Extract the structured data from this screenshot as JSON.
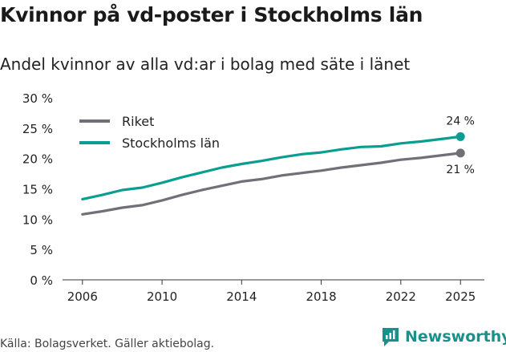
{
  "header": {
    "title": "Kvinnor på vd-poster i Stockholms län",
    "subtitle": "Andel kvinnor av alla vd:ar i bolag med säte i länet"
  },
  "footer": {
    "source": "Källa: Bolagsverket. Gäller aktiebolag.",
    "brand": "Newsworthy"
  },
  "colors": {
    "riket": "#707077",
    "stockholm": "#0a9e93",
    "axis": "#333333",
    "brand": "#1b8f8a"
  },
  "chart_data": {
    "type": "line",
    "title": "Kvinnor på vd-poster i Stockholms län",
    "subtitle": "Andel kvinnor av alla vd:ar i bolag med säte i länet",
    "x": [
      2006,
      2007,
      2008,
      2009,
      2010,
      2011,
      2012,
      2013,
      2014,
      2015,
      2016,
      2017,
      2018,
      2019,
      2020,
      2021,
      2022,
      2023,
      2024,
      2025
    ],
    "x_ticks": [
      2006,
      2010,
      2014,
      2018,
      2022,
      2025
    ],
    "y_ticks": [
      0,
      5,
      10,
      15,
      20,
      25,
      30
    ],
    "y_tick_labels": [
      "0 %",
      "5 %",
      "10 %",
      "15 %",
      "20 %",
      "25 %",
      "30 %"
    ],
    "ylim": [
      0,
      30
    ],
    "xlabel": "",
    "ylabel": "",
    "grid": false,
    "legend_position": "top-left",
    "series": [
      {
        "name": "Riket",
        "key": "riket",
        "values": [
          10.8,
          11.3,
          11.9,
          12.3,
          13.1,
          14.0,
          14.8,
          15.5,
          16.2,
          16.6,
          17.2,
          17.6,
          18.0,
          18.5,
          18.9,
          19.3,
          19.8,
          20.1,
          20.5,
          20.9
        ],
        "end_label": "21 %"
      },
      {
        "name": "Stockholms län",
        "key": "stockholm",
        "values": [
          13.3,
          14.0,
          14.8,
          15.2,
          16.0,
          16.9,
          17.7,
          18.5,
          19.1,
          19.6,
          20.2,
          20.7,
          21.0,
          21.5,
          21.9,
          22.0,
          22.5,
          22.8,
          23.2,
          23.6
        ],
        "end_label": "24 %"
      }
    ]
  }
}
